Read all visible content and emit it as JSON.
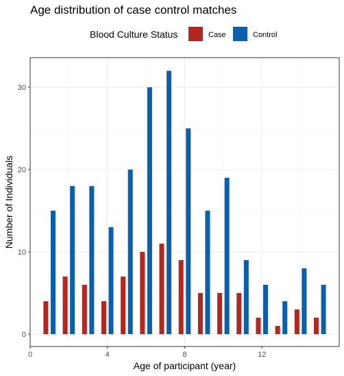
{
  "chart_data": {
    "type": "bar",
    "title": "Age distribution of case control matches",
    "xlabel": "Age of participant (year)",
    "ylabel": "Number of Individuals",
    "xlim": [
      0,
      16
    ],
    "ylim": [
      -1.5,
      33.6
    ],
    "x_ticks": [
      0,
      4,
      8,
      12
    ],
    "y_ticks": [
      0,
      10,
      20,
      30
    ],
    "grid": true,
    "legend": {
      "title": "Blood Culture Status",
      "position": "top"
    },
    "x": [
      1,
      2,
      3,
      4,
      5,
      6,
      7,
      8,
      9,
      10,
      11,
      12,
      13,
      14,
      15
    ],
    "series": [
      {
        "name": "Case",
        "color": "#B2271F",
        "values": [
          4,
          7,
          6,
          4,
          7,
          10,
          11,
          9,
          5,
          5,
          5,
          2,
          1,
          3,
          2
        ]
      },
      {
        "name": "Control",
        "color": "#0E5FAA",
        "values": [
          15,
          18,
          18,
          13,
          20,
          30,
          32,
          25,
          15,
          19,
          9,
          6,
          4,
          8,
          6
        ]
      }
    ]
  }
}
